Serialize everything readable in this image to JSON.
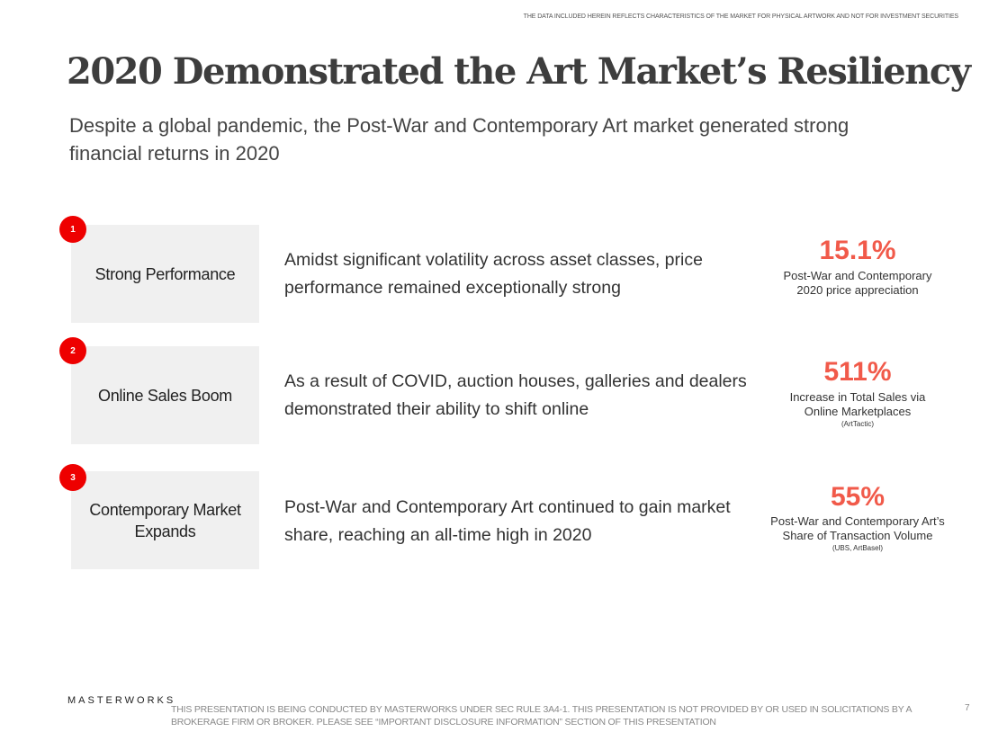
{
  "top_note": "THE DATA INCLUDED HEREIN REFLECTS CHARACTERISTICS OF THE MARKET FOR PHYSICAL ARTWORK AND NOT FOR INVESTMENT SECURITIES",
  "title": "2020 Demonstrated the Art Market’s Resiliency",
  "subtitle": "Despite a global pandemic, the Post-War and Contemporary Art market generated strong financial returns in 2020",
  "items": [
    {
      "number": "1",
      "heading": "Strong Performance",
      "description": "Amidst significant volatility across asset classes, price performance remained exceptionally strong",
      "stat": "15.1%",
      "stat_label": "Post-War and Contemporary 2020 price appreciation",
      "source": ""
    },
    {
      "number": "2",
      "heading": "Online Sales Boom",
      "description": "As a result of COVID, auction houses, galleries and dealers demonstrated their ability to shift online",
      "stat": "511%",
      "stat_label": "Increase in Total Sales via Online Marketplaces",
      "source": "(ArtTactic)"
    },
    {
      "number": "3",
      "heading": "Contemporary Market Expands",
      "description": "Post-War and Contemporary Art continued to gain market share, reaching an all-time high in 2020",
      "stat": "55%",
      "stat_label": "Post-War and Contemporary Art’s Share of Transaction Volume",
      "source": "(UBS, ArtBasel)"
    }
  ],
  "footer": {
    "logo": "MASTERWORKS",
    "disclaimer": "THIS PRESENTATION  IS BEING CONDUCTED BY MASTERWORKS UNDER SEC RULE 3A4-1. THIS PRESENTATION  IS NOT PROVIDED BY OR USED IN SOLICITATIONS BY A BROKERAGE FIRM OR BROKER. PLEASE SEE “IMPORTANT DISCLOSURE INFORMATION” SECTION OF THIS PRESENTATION",
    "page": "7"
  },
  "colors": {
    "accent": "#f15a4a",
    "badge": "#ee0000",
    "box": "#f0f0f0"
  }
}
